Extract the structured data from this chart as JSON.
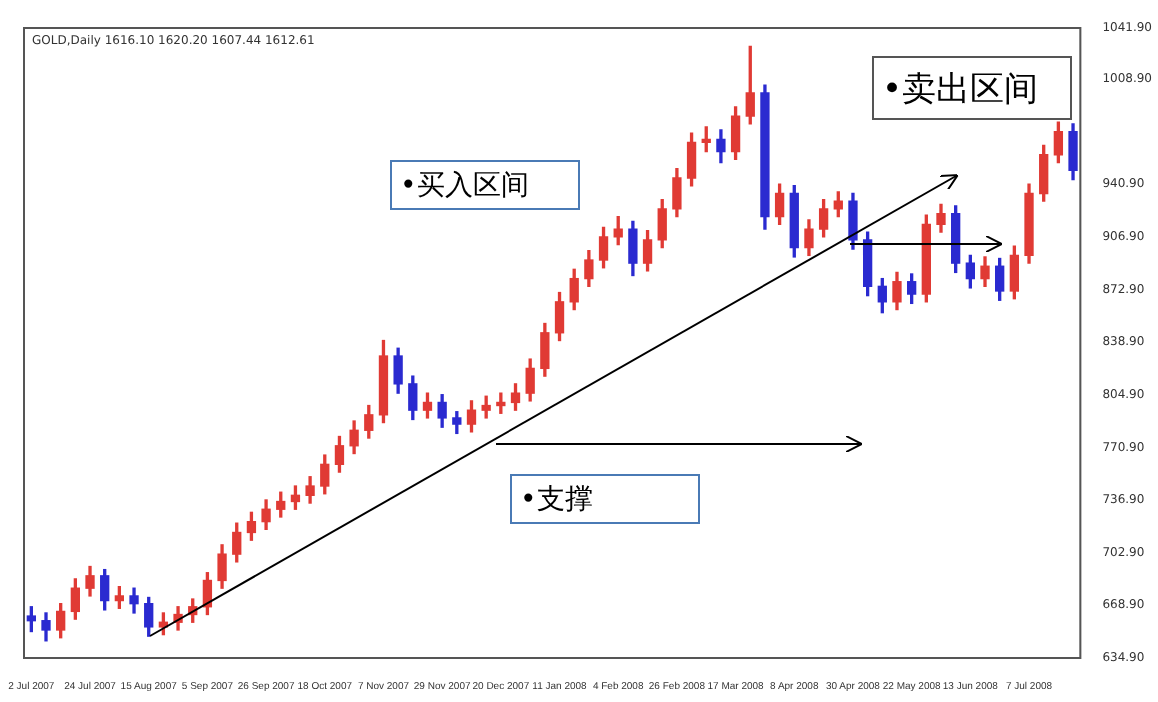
{
  "chart_data": {
    "type": "candlestick",
    "title": "GOLD,Daily 1616.10 1620.20 1607.44 1612.61",
    "categories": [
      "2 Jul 2007",
      null,
      null,
      null,
      "24 Jul 2007",
      null,
      null,
      null,
      "15 Aug 2007",
      null,
      null,
      null,
      "5 Sep 2007",
      null,
      null,
      null,
      "26 Sep 2007",
      null,
      null,
      null,
      "18 Oct 2007",
      null,
      null,
      null,
      "7 Nov 2007",
      null,
      null,
      null,
      "29 Nov 2007",
      null,
      null,
      null,
      "20 Dec 2007",
      null,
      null,
      null,
      "11 Jan 2008",
      null,
      null,
      null,
      "4 Feb 2008",
      null,
      null,
      null,
      "26 Feb 2008",
      null,
      null,
      null,
      "17 Mar 2008",
      null,
      null,
      null,
      "8 Apr 2008",
      null,
      null,
      null,
      "30 Apr 2008",
      null,
      null,
      null,
      "22 May 2008",
      null,
      null,
      null,
      "13 Jun 2008",
      null,
      null,
      null,
      "7 Jul 2008",
      null,
      null,
      null
    ],
    "ohlc": [
      [
        662,
        668,
        652,
        659
      ],
      [
        659,
        664,
        646,
        653
      ],
      [
        653,
        670,
        648,
        665
      ],
      [
        665,
        686,
        660,
        680
      ],
      [
        680,
        694,
        675,
        688
      ],
      [
        688,
        692,
        666,
        672
      ],
      [
        672,
        681,
        667,
        675
      ],
      [
        675,
        680,
        664,
        670
      ],
      [
        670,
        674,
        649,
        655
      ],
      [
        655,
        664,
        650,
        658
      ],
      [
        658,
        668,
        653,
        663
      ],
      [
        663,
        673,
        658,
        668
      ],
      [
        668,
        690,
        663,
        685
      ],
      [
        685,
        708,
        680,
        702
      ],
      [
        702,
        722,
        697,
        716
      ],
      [
        716,
        729,
        711,
        723
      ],
      [
        723,
        737,
        718,
        731
      ],
      [
        731,
        742,
        726,
        736
      ],
      [
        736,
        746,
        731,
        740
      ],
      [
        740,
        752,
        735,
        746
      ],
      [
        746,
        766,
        741,
        760
      ],
      [
        760,
        778,
        755,
        772
      ],
      [
        772,
        788,
        767,
        782
      ],
      [
        782,
        798,
        777,
        792
      ],
      [
        792,
        840,
        787,
        830
      ],
      [
        830,
        835,
        806,
        812
      ],
      [
        812,
        817,
        789,
        795
      ],
      [
        795,
        806,
        790,
        800
      ],
      [
        800,
        805,
        784,
        790
      ],
      [
        790,
        794,
        780,
        786
      ],
      [
        786,
        801,
        781,
        795
      ],
      [
        795,
        804,
        790,
        798
      ],
      [
        798,
        806,
        793,
        800
      ],
      [
        800,
        812,
        795,
        806
      ],
      [
        806,
        828,
        801,
        822
      ],
      [
        822,
        851,
        817,
        845
      ],
      [
        845,
        871,
        840,
        865
      ],
      [
        865,
        886,
        860,
        880
      ],
      [
        880,
        898,
        875,
        892
      ],
      [
        892,
        913,
        887,
        907
      ],
      [
        907,
        920,
        902,
        912
      ],
      [
        912,
        917,
        882,
        890
      ],
      [
        890,
        911,
        885,
        905
      ],
      [
        905,
        931,
        900,
        925
      ],
      [
        925,
        951,
        920,
        945
      ],
      [
        945,
        974,
        940,
        968
      ],
      [
        968,
        978,
        962,
        970
      ],
      [
        970,
        976,
        955,
        962
      ],
      [
        962,
        991,
        957,
        985
      ],
      [
        985,
        1030,
        980,
        1000
      ],
      [
        1000,
        1005,
        912,
        920
      ],
      [
        920,
        941,
        915,
        935
      ],
      [
        935,
        940,
        894,
        900
      ],
      [
        900,
        918,
        895,
        912
      ],
      [
        912,
        931,
        907,
        925
      ],
      [
        925,
        936,
        920,
        930
      ],
      [
        930,
        935,
        899,
        905
      ],
      [
        905,
        910,
        869,
        875
      ],
      [
        875,
        880,
        858,
        865
      ],
      [
        865,
        884,
        860,
        878
      ],
      [
        878,
        883,
        864,
        870
      ],
      [
        870,
        921,
        865,
        915
      ],
      [
        915,
        928,
        910,
        922
      ],
      [
        922,
        927,
        884,
        890
      ],
      [
        890,
        895,
        874,
        880
      ],
      [
        880,
        894,
        875,
        888
      ],
      [
        888,
        893,
        866,
        872
      ],
      [
        872,
        901,
        867,
        895
      ],
      [
        895,
        941,
        890,
        935
      ],
      [
        935,
        966,
        930,
        960
      ],
      [
        960,
        981,
        955,
        975
      ],
      [
        975,
        980,
        944,
        950
      ]
    ],
    "ylim": [
      634.9,
      1041.9
    ],
    "yticks": [
      {
        "value": 634.9,
        "label": "634.90"
      },
      {
        "value": 668.9,
        "label": "668.90"
      },
      {
        "value": 702.9,
        "label": "702.90"
      },
      {
        "value": 736.9,
        "label": "736.90"
      },
      {
        "value": 770.9,
        "label": "770.90"
      },
      {
        "value": 804.9,
        "label": "804.90"
      },
      {
        "value": 838.9,
        "label": "838.90"
      },
      {
        "value": 872.9,
        "label": "872.90"
      },
      {
        "value": 906.9,
        "label": "906.90"
      },
      {
        "value": 940.9,
        "label": "940.90"
      },
      {
        "value": 1008.9,
        "label": "1008.90"
      },
      {
        "value": 1041.9,
        "label": "1041.90"
      }
    ],
    "annotations": [
      "•买入区间",
      "•卖出区间",
      "•支撑"
    ]
  }
}
